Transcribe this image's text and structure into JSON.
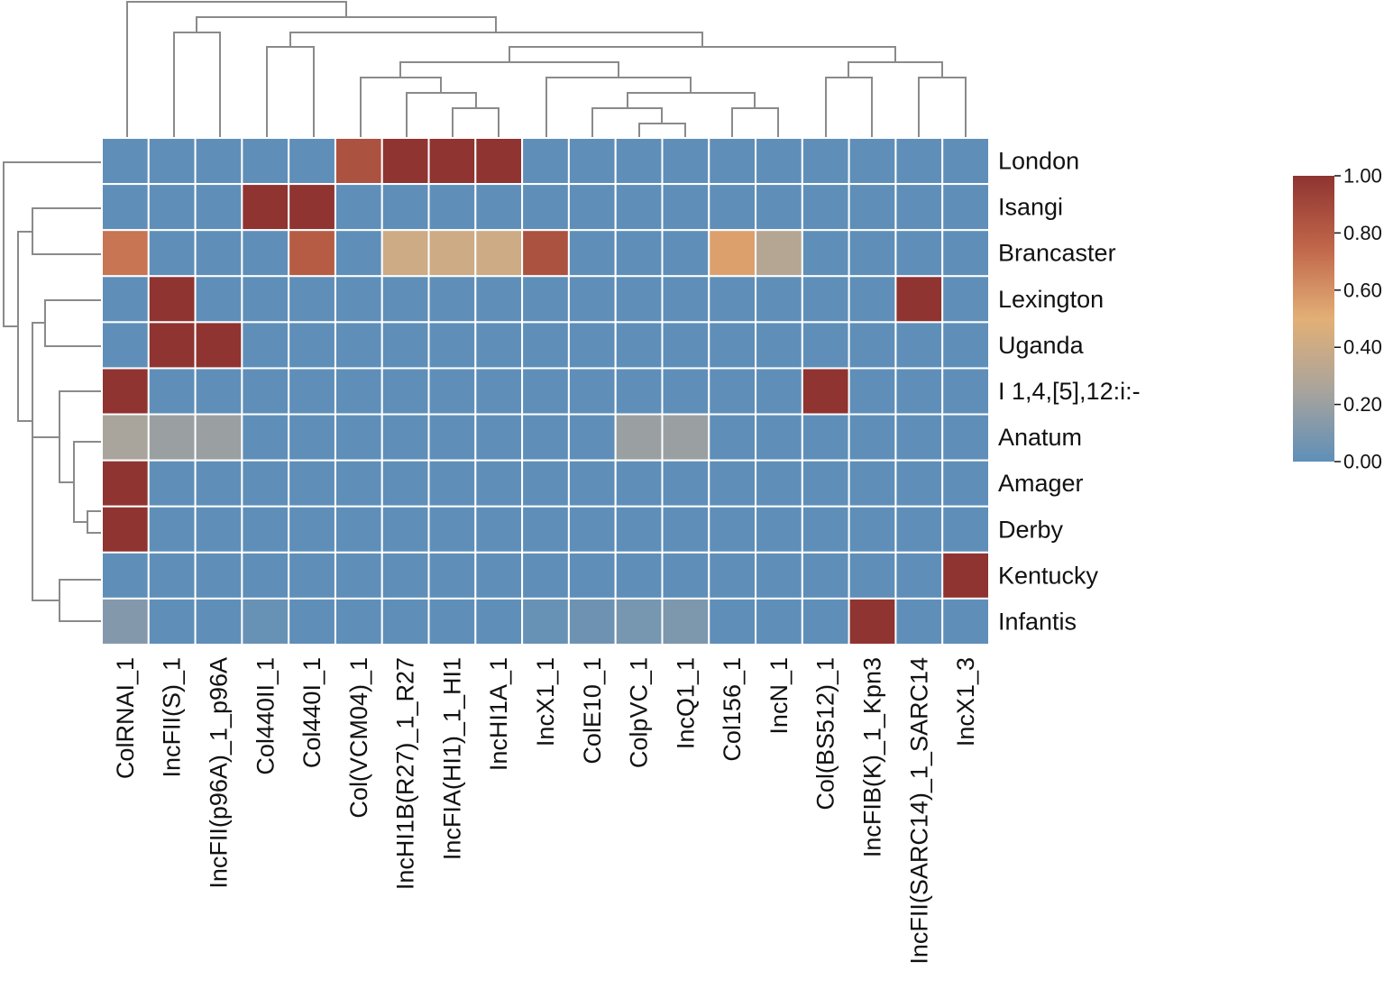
{
  "chart_data": {
    "type": "heatmap",
    "title": "",
    "xlabel": "",
    "ylabel": "",
    "rows": [
      "London",
      "Isangi",
      "Brancaster",
      "Lexington",
      "Uganda",
      "I 1,4,[5],12:i:-",
      "Anatum",
      "Amager",
      "Derby",
      "Kentucky",
      "Infantis"
    ],
    "columns": [
      "ColRNAI_1",
      "IncFII(S)_1",
      "IncFII(p96A)_1_p96A",
      "Col440II_1",
      "Col440I_1",
      "Col(VCM04)_1",
      "IncHI1B(R27)_1_R27",
      "IncFIA(HI1)_1_HI1",
      "IncHI1A_1",
      "IncX1_1",
      "ColE10_1",
      "ColpVC_1",
      "IncQ1_1",
      "Col156_1",
      "IncN_1",
      "Col(BS512)_1",
      "IncFIB(K)_1_Kpn3",
      "IncFII(SARC14)_1_SARC14",
      "IncX1_3"
    ],
    "values": [
      [
        0,
        0,
        0,
        0,
        0,
        0.85,
        1,
        1,
        1,
        0,
        0,
        0,
        0,
        0,
        0,
        0,
        0,
        0,
        0
      ],
      [
        0,
        0,
        0,
        1,
        1,
        0,
        0,
        0,
        0,
        0,
        0,
        0,
        0,
        0,
        0,
        0,
        0,
        0,
        0
      ],
      [
        0.7,
        0,
        0,
        0,
        0.8,
        0,
        0.4,
        0.4,
        0.4,
        0.85,
        0,
        0,
        0,
        0.55,
        0.3,
        0,
        0,
        0,
        0
      ],
      [
        0,
        1,
        0,
        0,
        0,
        0,
        0,
        0,
        0,
        0,
        0,
        0,
        0,
        0,
        0,
        0,
        0,
        1,
        0
      ],
      [
        0,
        1,
        1,
        0,
        0,
        0,
        0,
        0,
        0,
        0,
        0,
        0,
        0,
        0,
        0,
        0,
        0,
        0,
        0
      ],
      [
        1,
        0,
        0,
        0,
        0,
        0,
        0,
        0,
        0,
        0,
        0,
        0,
        0,
        0,
        0,
        1,
        0,
        0,
        0
      ],
      [
        0.25,
        0.2,
        0.2,
        0,
        0,
        0,
        0,
        0,
        0,
        0,
        0,
        0.2,
        0.2,
        0,
        0,
        0,
        0,
        0,
        0
      ],
      [
        1,
        0,
        0,
        0,
        0,
        0,
        0,
        0,
        0,
        0,
        0,
        0,
        0,
        0,
        0,
        0,
        0,
        0,
        0
      ],
      [
        1,
        0,
        0,
        0,
        0,
        0,
        0,
        0,
        0,
        0,
        0,
        0,
        0,
        0,
        0,
        0,
        0,
        0,
        0
      ],
      [
        0,
        0,
        0,
        0,
        0,
        0,
        0,
        0,
        0,
        0,
        0,
        0,
        0,
        0,
        0,
        0,
        0,
        0,
        1
      ],
      [
        0.12,
        0,
        0,
        0.03,
        0,
        0,
        0,
        0,
        0,
        0.03,
        0.05,
        0.08,
        0.1,
        0,
        0,
        0,
        1,
        0,
        0
      ]
    ],
    "value_range": [
      0,
      1
    ],
    "colorbar": {
      "ticks": [
        "1.00",
        "0.80",
        "0.60",
        "0.40",
        "0.20",
        "0.00"
      ],
      "colors": [
        "#5f8fb8",
        "#a9a49c",
        "#e3af76",
        "#c0664a",
        "#8f3431"
      ]
    },
    "dendrograms": {
      "columns": "top",
      "rows": "left"
    },
    "grid_color": "#ffffff",
    "dendrogram_color": "#8a8a8a"
  }
}
